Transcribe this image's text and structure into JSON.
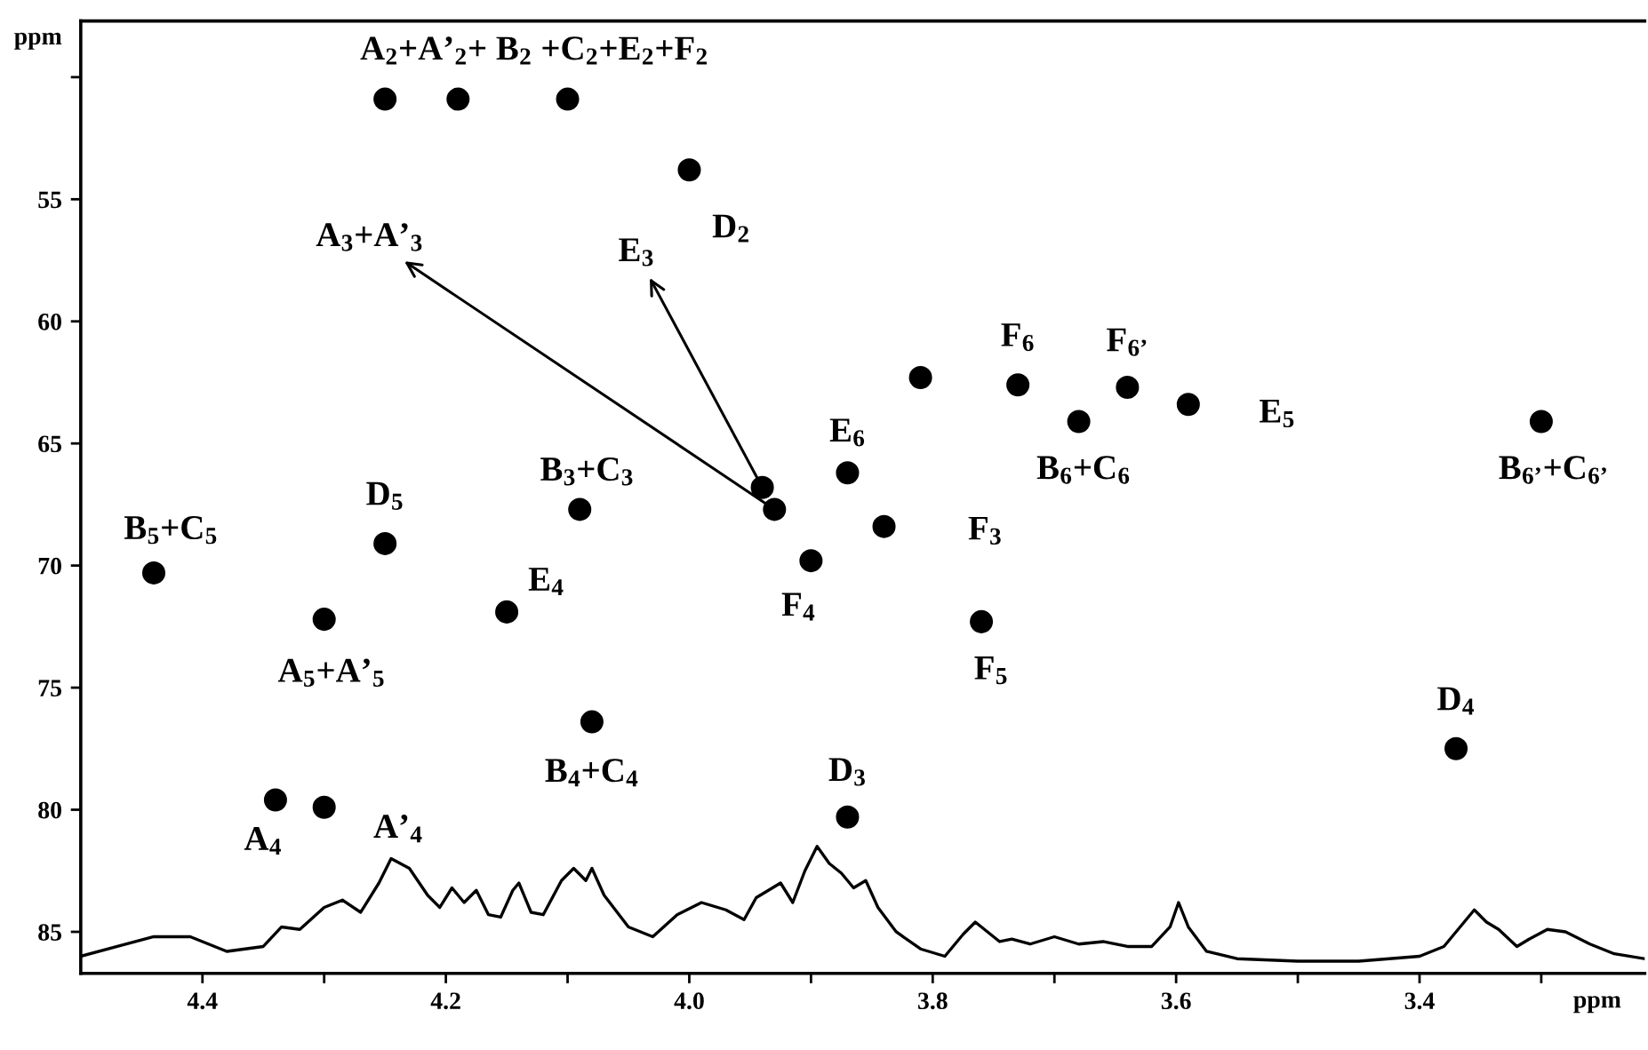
{
  "chart_data": {
    "type": "scatter",
    "xlabel": "ppm",
    "ylabel": "ppm",
    "xlim": [
      4.5,
      3.215
    ],
    "ylim": [
      86.7,
      47.7
    ],
    "xticks": [
      4.4,
      {
        "value": 4.3,
        "label": null
      },
      4.2,
      {
        "value": 4.1,
        "label": null
      },
      {
        "value": 4.0,
        "label": "4.0"
      },
      {
        "value": 3.9,
        "label": null
      },
      3.8,
      {
        "value": 3.7,
        "label": null
      },
      3.6,
      {
        "value": 3.5,
        "label": null
      },
      3.4,
      {
        "value": 3.3,
        "label": null
      }
    ],
    "yticks": [
      {
        "value": 50,
        "label": null
      },
      55,
      60,
      65,
      70,
      75,
      80,
      85
    ],
    "series": [
      {
        "marker": "circle",
        "color": "#000000",
        "x": [
          4.25,
          4.19,
          4.1,
          4.0,
          3.81,
          3.73,
          3.64,
          3.59,
          3.68,
          3.3,
          3.87,
          3.94,
          3.93,
          4.09,
          3.84,
          4.25,
          3.9,
          4.44,
          4.15,
          4.3,
          3.76,
          4.08,
          3.37,
          4.34,
          4.3,
          3.87
        ],
        "values": [
          50.9,
          50.9,
          50.9,
          53.8,
          62.3,
          62.6,
          62.7,
          63.4,
          64.1,
          64.1,
          66.2,
          66.8,
          67.7,
          67.7,
          68.4,
          69.1,
          69.8,
          70.3,
          71.9,
          72.2,
          72.3,
          76.4,
          77.5,
          79.6,
          79.9,
          80.3
        ]
      },
      {
        "type": "line",
        "color": "#000000",
        "x": [
          4.5,
          4.47,
          4.44,
          4.41,
          4.38,
          4.35,
          4.335,
          4.32,
          4.3,
          4.285,
          4.27,
          4.255,
          4.245,
          4.23,
          4.215,
          4.205,
          4.195,
          4.185,
          4.175,
          4.165,
          4.155,
          4.145,
          4.14,
          4.13,
          4.12,
          4.105,
          4.095,
          4.085,
          4.08,
          4.07,
          4.05,
          4.03,
          4.01,
          3.99,
          3.97,
          3.955,
          3.945,
          3.935,
          3.925,
          3.915,
          3.905,
          3.895,
          3.885,
          3.875,
          3.865,
          3.855,
          3.845,
          3.83,
          3.81,
          3.79,
          3.775,
          3.765,
          3.755,
          3.745,
          3.735,
          3.72,
          3.7,
          3.68,
          3.66,
          3.64,
          3.62,
          3.605,
          3.598,
          3.59,
          3.575,
          3.55,
          3.5,
          3.45,
          3.4,
          3.38,
          3.365,
          3.355,
          3.345,
          3.335,
          3.32,
          3.31,
          3.295,
          3.28,
          3.26,
          3.24,
          3.215
        ],
        "values": [
          86.0,
          85.6,
          85.2,
          85.2,
          85.8,
          85.6,
          84.8,
          84.9,
          84.0,
          83.7,
          84.2,
          83.0,
          82.0,
          82.4,
          83.5,
          84.0,
          83.2,
          83.8,
          83.3,
          84.3,
          84.4,
          83.3,
          83.0,
          84.2,
          84.3,
          82.9,
          82.4,
          82.9,
          82.4,
          83.5,
          84.8,
          85.2,
          84.3,
          83.8,
          84.1,
          84.5,
          83.6,
          83.3,
          83.0,
          83.8,
          82.5,
          81.5,
          82.2,
          82.6,
          83.2,
          82.9,
          84.0,
          85.0,
          85.7,
          86.0,
          85.1,
          84.6,
          85.0,
          85.4,
          85.3,
          85.5,
          85.2,
          85.5,
          85.4,
          85.6,
          85.6,
          84.8,
          83.8,
          84.8,
          85.8,
          86.1,
          86.2,
          86.2,
          86.0,
          85.6,
          84.7,
          84.1,
          84.6,
          84.9,
          85.6,
          85.3,
          84.9,
          85.0,
          85.5,
          85.9,
          86.1
        ]
      }
    ],
    "annotations": [
      "A$_{2}$+A’$_{2}$+ B$_{2}$ +C$_{2}$+E$_{2}$+F$_{2}$",
      {
        "text": "D$_{2}$",
        "x": 4.0,
        "y": 53.8
      },
      {
        "text": "A$_{3}$+A’$_{3}$",
        "x": 3.93,
        "y": 67.7
      },
      {
        "text": "E$_{3}$",
        "x": 3.94,
        "y": 66.8
      },
      {
        "text": "B$_{3}$+C$_{3}$",
        "x": 4.09,
        "y": 67.7
      },
      {
        "text": "E$_{6}$",
        "x": 3.87,
        "y": 66.2
      },
      {
        "text": "D$_{5}$",
        "x": 4.25,
        "y": 69.1
      },
      {
        "text": "B$_{5}$+C$_{5}$",
        "x": 4.44,
        "y": 70.3
      },
      {
        "text": "A$_{5}$+A’$_{5}$",
        "x": 4.3,
        "y": 72.2
      },
      {
        "text": "E$_{4}$",
        "x": 4.15,
        "y": 71.9
      },
      {
        "text": "B$_{4}$+C$_{4}$",
        "x": 4.08,
        "y": 76.4
      },
      {
        "text": "A$_{4}$",
        "x": 4.34,
        "y": 79.6
      },
      {
        "text": "A’$_{4}$",
        "x": 4.3,
        "y": 79.9
      },
      {
        "text": "D$_{3}$",
        "x": 3.87,
        "y": 80.3
      },
      {
        "text": "F$_{4}$",
        "x": 3.9,
        "y": 69.8
      },
      {
        "text": "F$_{3}$",
        "x": 3.84,
        "y": 68.4
      },
      {
        "text": "F$_{6}$",
        "x": 3.73,
        "y": 62.6
      },
      {
        "text": "F$_{6’}$",
        "x": 3.64,
        "y": 62.7
      },
      {
        "text": "E$_{5}$",
        "x": 3.59,
        "y": 63.4
      },
      {
        "text": "B$_{6}$+C$_{6}$",
        "x": 3.68,
        "y": 64.1
      },
      {
        "text": "F$_{5}$",
        "x": 3.76,
        "y": 72.3
      },
      {
        "text": "B$_{6’}$+C$_{6’}$",
        "x": 3.3,
        "y": 64.1
      },
      {
        "text": "D$_{4}$",
        "x": 3.37,
        "y": 77.5
      }
    ]
  }
}
